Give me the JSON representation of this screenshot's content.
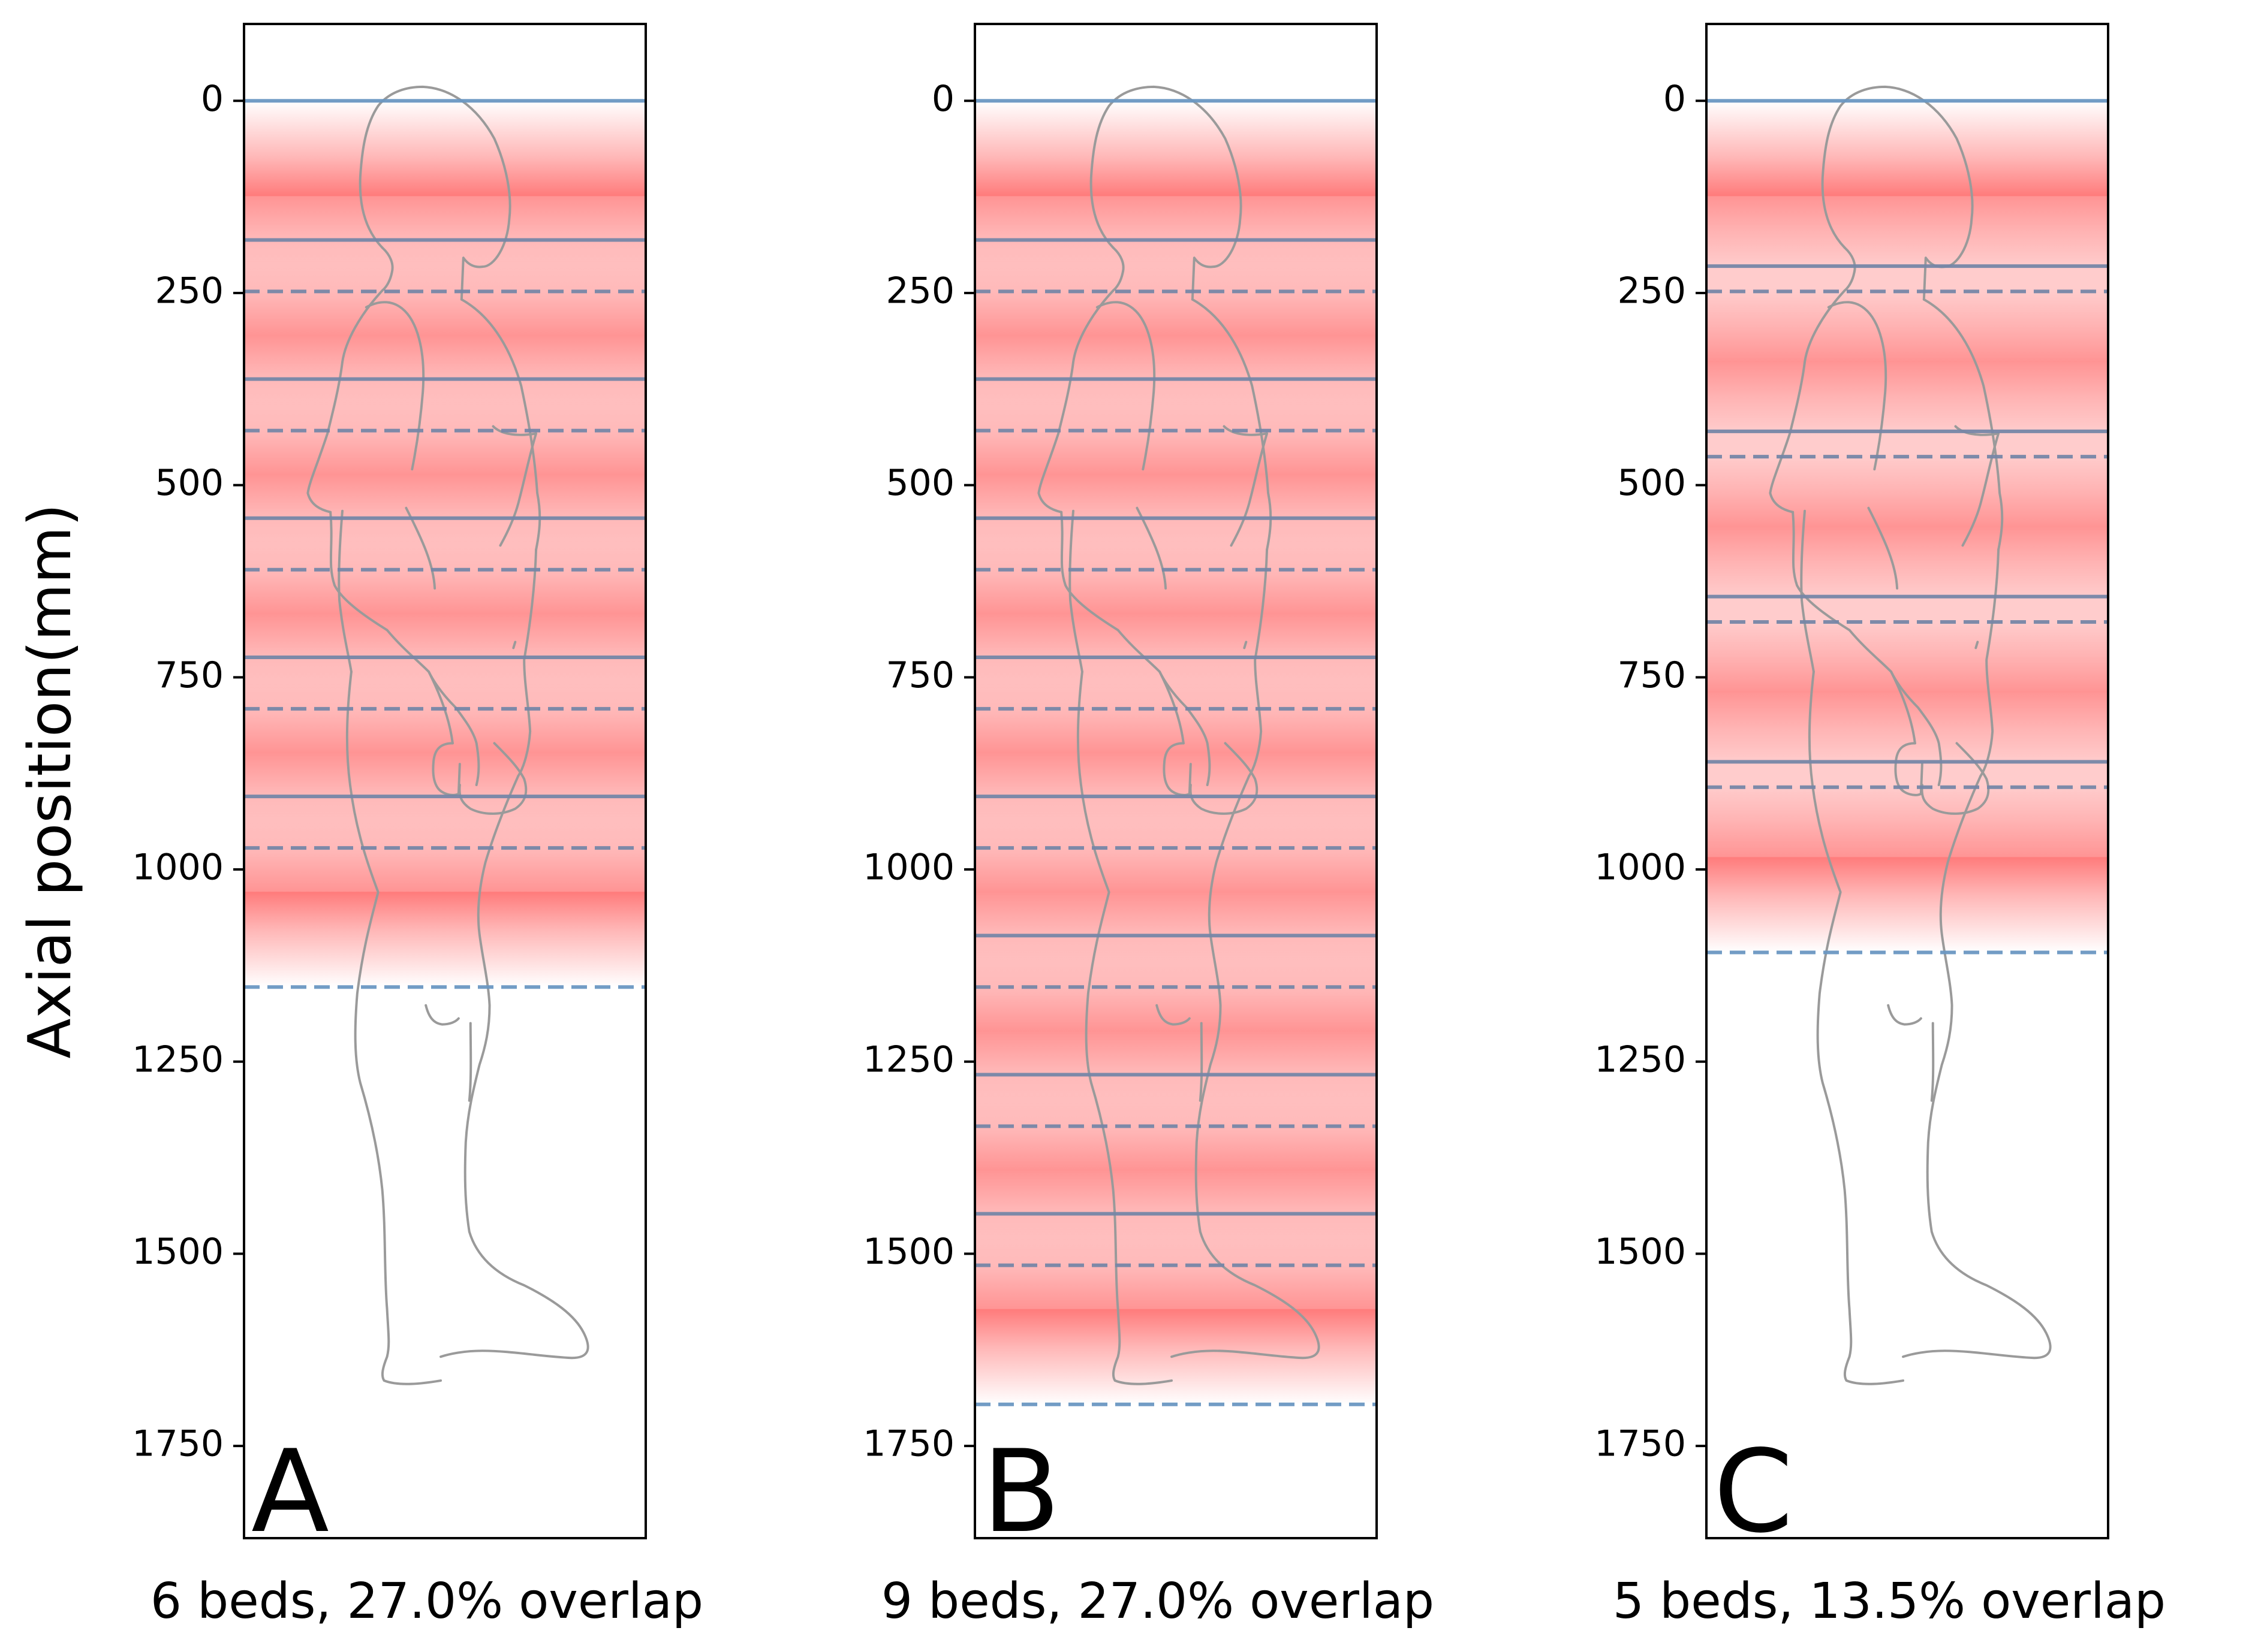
{
  "chart_data": {
    "type": "scan-coverage",
    "ylabel": "Axial position(mm)",
    "ylim": [
      1870,
      -100
    ],
    "yticks": [
      0,
      250,
      500,
      750,
      1000,
      1250,
      1500,
      1750
    ],
    "ytick_labels": [
      "0",
      "250",
      "500",
      "750",
      "1000",
      "1250",
      "1500",
      "1750"
    ],
    "invert_y": true,
    "colors": {
      "bed_line": "#6a97c2",
      "bed_line_dark": "#7686a6",
      "coverage_peak": "#ff7b7b",
      "coverage_overlap": "#ffb3b3",
      "body_outline": "#9a9a9a",
      "frame": "#000000"
    },
    "panels": [
      {
        "letter": "A",
        "subtitle": "6 beds, 27.0% overlap",
        "beds": [
          {
            "start": 0,
            "end": 248
          },
          {
            "start": 181,
            "end": 429
          },
          {
            "start": 362,
            "end": 610
          },
          {
            "start": 543,
            "end": 791
          },
          {
            "start": 724,
            "end": 972
          },
          {
            "start": 905,
            "end": 1153
          }
        ]
      },
      {
        "letter": "B",
        "subtitle": "9 beds, 27.0% overlap",
        "beds": [
          {
            "start": 0,
            "end": 248
          },
          {
            "start": 181,
            "end": 429
          },
          {
            "start": 362,
            "end": 610
          },
          {
            "start": 543,
            "end": 791
          },
          {
            "start": 724,
            "end": 972
          },
          {
            "start": 905,
            "end": 1153
          },
          {
            "start": 1086,
            "end": 1334
          },
          {
            "start": 1267,
            "end": 1515
          },
          {
            "start": 1448,
            "end": 1696
          }
        ]
      },
      {
        "letter": "C",
        "subtitle": "5 beds, 13.5% overlap",
        "beds": [
          {
            "start": 0,
            "end": 248
          },
          {
            "start": 215,
            "end": 463
          },
          {
            "start": 430,
            "end": 678
          },
          {
            "start": 645,
            "end": 893
          },
          {
            "start": 860,
            "end": 1108
          }
        ]
      }
    ]
  }
}
